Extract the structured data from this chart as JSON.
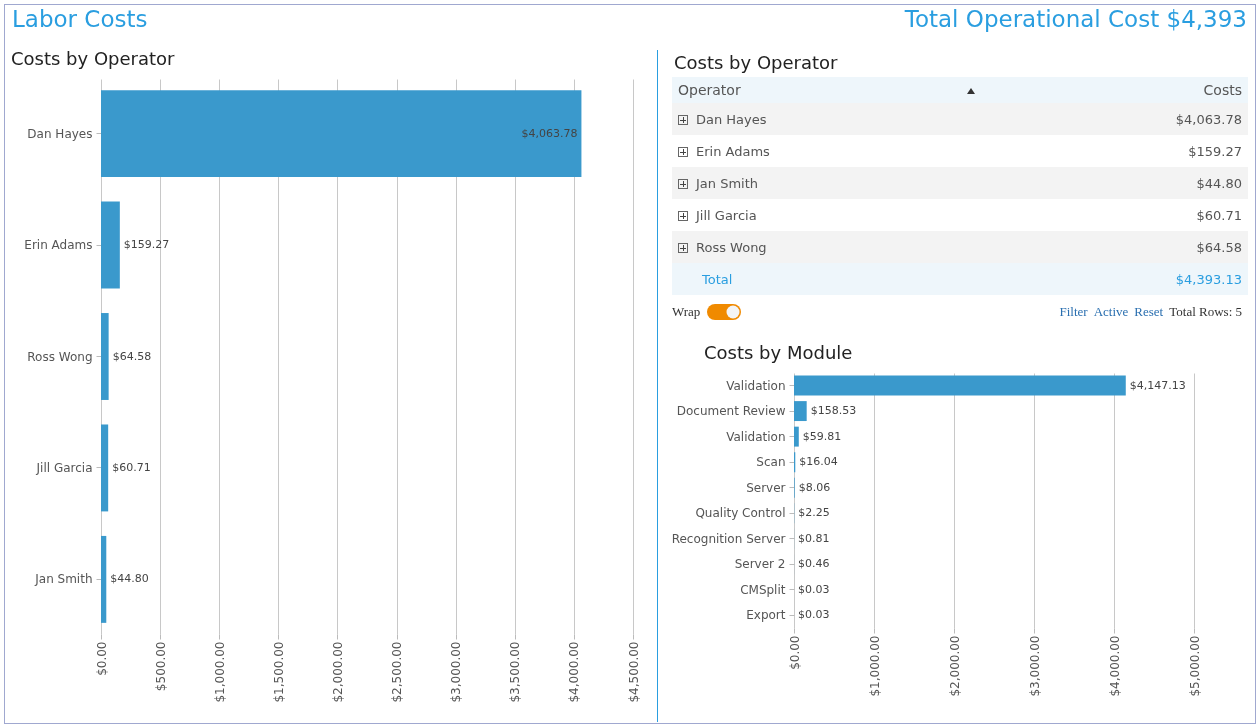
{
  "chart_data": [
    {
      "type": "bar",
      "orientation": "horizontal",
      "title": "Labor Costs",
      "subtitle": "Costs by Operator",
      "annotations": [
        "Total Operational Cost $4,393"
      ],
      "categories": [
        "Dan Hayes",
        "Erin Adams",
        "Ross Wong",
        "Jill Garcia",
        "Jan Smith"
      ],
      "values": [
        4063.78,
        159.27,
        64.58,
        60.71,
        44.8
      ],
      "value_labels": [
        "$4,063.78",
        "$159.27",
        "$64.58",
        "$60.71",
        "$44.80"
      ],
      "color": "#3a99cc",
      "grid": "x",
      "xlim": [
        0,
        4500
      ],
      "xticks": [
        {
          "value": 0,
          "label": "$0.00"
        },
        {
          "value": 500,
          "label": "$500.00"
        },
        {
          "value": 1000,
          "label": "$1,000.00"
        },
        {
          "value": 1500,
          "label": "$1,500.00"
        },
        {
          "value": 2000,
          "label": "$2,000.00"
        },
        {
          "value": 2500,
          "label": "$2,500.00"
        },
        {
          "value": 3000,
          "label": "$3,000.00"
        },
        {
          "value": 3500,
          "label": "$3,500.00"
        },
        {
          "value": 4000,
          "label": "$4,000.00"
        },
        {
          "value": 4500,
          "label": "$4,500.00"
        }
      ]
    },
    {
      "type": "other",
      "title": "Costs by Operator",
      "xlabel": "Operator",
      "ylabel": "Costs",
      "categories": [
        "Dan Hayes",
        "Erin Adams",
        "Jan Smith",
        "Jill Garcia",
        "Ross Wong",
        "Total"
      ],
      "value_labels": [
        "$4,063.78",
        "$159.27",
        "$44.80",
        "$60.71",
        "$64.58",
        "$4,393.13"
      ],
      "annotations": [
        "Wrap",
        "Filter",
        "Active",
        "Reset",
        "Total Rows: 5"
      ]
    },
    {
      "type": "bar",
      "orientation": "horizontal",
      "title": "Costs by Module",
      "categories": [
        "Validation",
        "Document Review",
        "Validation",
        "Scan",
        "Server",
        "Quality Control",
        "Recognition Server",
        "Server 2",
        "CMSplit",
        "Export"
      ],
      "values": [
        4147.13,
        158.53,
        59.81,
        16.04,
        8.06,
        2.25,
        0.81,
        0.46,
        0.03,
        0.03
      ],
      "value_labels": [
        "$4,147.13",
        "$158.53",
        "$59.81",
        "$16.04",
        "$8.06",
        "$2.25",
        "$0.81",
        "$0.46",
        "$0.03",
        "$0.03"
      ],
      "color": "#3a99cc",
      "grid": "x",
      "xlim": [
        0,
        5000
      ],
      "xticks": [
        {
          "value": 0,
          "label": "$0.00"
        },
        {
          "value": 1000,
          "label": "$1,000.00"
        },
        {
          "value": 2000,
          "label": "$2,000.00"
        },
        {
          "value": 3000,
          "label": "$3,000.00"
        },
        {
          "value": 4000,
          "label": "$4,000.00"
        },
        {
          "value": 5000,
          "label": "$5,000.00"
        }
      ]
    }
  ]
}
